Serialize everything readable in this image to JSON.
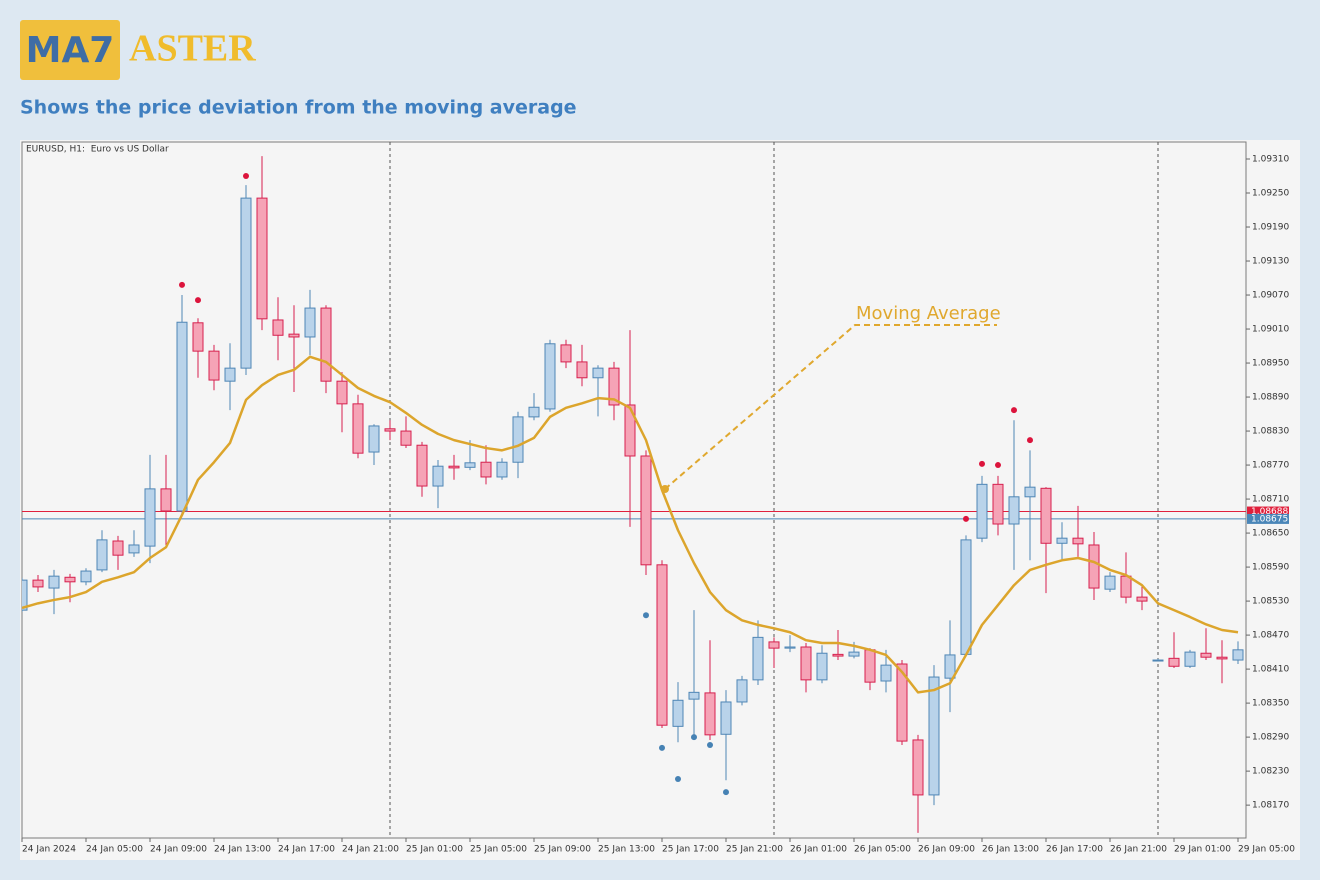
{
  "header": {
    "logo_box": "MA7",
    "logo_text": "ASTER",
    "subtitle": "Shows the price deviation from the moving average"
  },
  "chart_data": {
    "type": "candlestick",
    "title": "EURUSD, H1:  Euro vs US Dollar",
    "annotations": [
      "Moving Average"
    ],
    "categories": [
      "24 Jan 2024",
      null,
      null,
      null,
      "24 Jan 05:00",
      null,
      null,
      null,
      "24 Jan 09:00",
      null,
      null,
      null,
      "24 Jan 13:00",
      null,
      null,
      null,
      "24 Jan 17:00",
      null,
      null,
      null,
      "24 Jan 21:00",
      null,
      null,
      null,
      "25 Jan 01:00",
      null,
      null,
      null,
      "25 Jan 05:00",
      null,
      null,
      null,
      "25 Jan 09:00",
      null,
      null,
      null,
      "25 Jan 13:00",
      null,
      null,
      null,
      "25 Jan 17:00",
      null,
      null,
      null,
      "25 Jan 21:00",
      null,
      null,
      null,
      "26 Jan 01:00",
      null,
      null,
      null,
      "26 Jan 05:00",
      null,
      null,
      null,
      "26 Jan 09:00",
      null,
      null,
      null,
      "26 Jan 13:00",
      null,
      null,
      null,
      "26 Jan 17:00",
      null,
      null,
      null,
      "26 Jan 21:00",
      null,
      null,
      null,
      "29 Jan 01:00",
      null,
      null,
      null,
      "29 Jan 05:00"
    ],
    "open": [
      1.08514,
      1.08567,
      1.08553,
      1.08572,
      1.08564,
      1.08585,
      1.08636,
      1.08615,
      1.08627,
      1.08728,
      1.08689,
      1.09021,
      1.08971,
      1.08918,
      1.08941,
      1.09241,
      1.09026,
      1.09001,
      1.08996,
      1.09047,
      1.08918,
      1.08878,
      1.08793,
      1.08834,
      1.0883,
      1.08805,
      1.08733,
      1.08768,
      1.08766,
      1.08775,
      1.08749,
      1.08775,
      1.08855,
      1.08869,
      1.08982,
      1.08952,
      1.08924,
      1.08941,
      1.08876,
      1.08786,
      1.08594,
      1.08309,
      1.08357,
      1.08368,
      1.08295,
      1.08352,
      1.08391,
      1.08458,
      1.08447,
      1.08449,
      1.08391,
      1.08436,
      1.08433,
      1.08444,
      1.08389,
      1.08419,
      1.08285,
      1.08188,
      1.08394,
      1.08436,
      1.08641,
      1.08736,
      1.08666,
      1.08714,
      1.08729,
      1.08632,
      1.08641,
      1.08629,
      1.08551,
      1.08574,
      1.08537,
      1.08426,
      1.08429,
      1.08415,
      1.08438,
      1.08431,
      1.08426
    ],
    "high": [
      1.08571,
      1.08576,
      1.08585,
      1.08578,
      1.08588,
      1.08655,
      1.08645,
      1.08655,
      1.08788,
      1.08788,
      1.0907,
      1.09029,
      1.08982,
      1.08985,
      1.09264,
      1.09315,
      1.09066,
      1.09052,
      1.09079,
      1.09052,
      1.08934,
      1.08894,
      1.08842,
      1.08849,
      1.08856,
      1.08811,
      1.08779,
      1.08788,
      1.08814,
      1.08805,
      1.08782,
      1.08864,
      1.08897,
      1.08991,
      1.08991,
      1.08982,
      1.08946,
      1.08952,
      1.09008,
      1.08796,
      1.08602,
      1.08387,
      1.08514,
      1.08461,
      1.08373,
      1.08398,
      1.08496,
      1.08466,
      1.0847,
      1.08456,
      1.08452,
      1.08479,
      1.08458,
      1.08447,
      1.08444,
      1.08426,
      1.08294,
      1.08417,
      1.08496,
      1.08646,
      1.08751,
      1.08751,
      1.08849,
      1.08796,
      1.08731,
      1.08669,
      1.08698,
      1.08652,
      1.08581,
      1.08616,
      1.08558,
      1.08428,
      1.08475,
      1.08444,
      1.08482,
      1.08461,
      1.08459
    ],
    "low": [
      1.08511,
      1.08546,
      1.08507,
      1.08528,
      1.08558,
      1.08581,
      1.08585,
      1.08608,
      1.08597,
      1.08629,
      1.08682,
      1.08924,
      1.08902,
      1.08867,
      1.08929,
      1.09008,
      1.08955,
      1.08899,
      1.08964,
      1.08897,
      1.08828,
      1.08782,
      1.0877,
      1.08814,
      1.088,
      1.08714,
      1.08694,
      1.08744,
      1.08761,
      1.08736,
      1.08744,
      1.08747,
      1.08849,
      1.08864,
      1.08941,
      1.08909,
      1.08856,
      1.08849,
      1.08661,
      1.08576,
      1.08306,
      1.08281,
      1.08294,
      1.08285,
      1.08214,
      1.08346,
      1.08382,
      1.08412,
      1.0844,
      1.08369,
      1.08385,
      1.08426,
      1.08429,
      1.08373,
      1.08369,
      1.08276,
      1.08121,
      1.0817,
      1.08334,
      1.08433,
      1.08634,
      1.08646,
      1.08585,
      1.08602,
      1.08544,
      1.08602,
      1.08608,
      1.08532,
      1.08546,
      1.08526,
      1.08514,
      1.08424,
      1.08412,
      1.08412,
      1.08426,
      1.08385,
      1.08419
    ],
    "close": [
      1.08567,
      1.08555,
      1.08574,
      1.08564,
      1.08583,
      1.08638,
      1.08611,
      1.08629,
      1.08728,
      1.08689,
      1.09022,
      1.08971,
      1.0892,
      1.08941,
      1.09241,
      1.09028,
      1.08999,
      1.08996,
      1.09047,
      1.08918,
      1.08878,
      1.08791,
      1.08839,
      1.0883,
      1.08805,
      1.08733,
      1.08768,
      1.08765,
      1.08774,
      1.08749,
      1.08775,
      1.08855,
      1.08872,
      1.08984,
      1.08952,
      1.08924,
      1.08941,
      1.08876,
      1.08786,
      1.08594,
      1.08311,
      1.08355,
      1.08369,
      1.08294,
      1.08352,
      1.08391,
      1.08466,
      1.08447,
      1.08449,
      1.08391,
      1.08438,
      1.08433,
      1.0844,
      1.08387,
      1.08417,
      1.08283,
      1.08188,
      1.08396,
      1.08435,
      1.08638,
      1.08736,
      1.08666,
      1.08714,
      1.08731,
      1.08632,
      1.08641,
      1.08631,
      1.08553,
      1.08574,
      1.08537,
      1.0853,
      1.08426,
      1.08415,
      1.0844,
      1.08431,
      1.08428,
      1.08444
    ],
    "up_color": {
      "fill": "#b9d3ea",
      "stroke": "#4f86b5"
    },
    "down_color": {
      "fill": "#f5a3b6",
      "stroke": "#d6204e"
    },
    "moving_average": {
      "color": "#dca52c",
      "values": [
        1.08518,
        1.08526,
        1.08532,
        1.08537,
        1.08546,
        1.08564,
        1.08572,
        1.08581,
        1.08606,
        1.08625,
        1.08682,
        1.08744,
        1.08775,
        1.08809,
        1.08885,
        1.08911,
        1.08929,
        1.08938,
        1.08961,
        1.08952,
        1.08929,
        1.08906,
        1.08892,
        1.08881,
        1.08862,
        1.08841,
        1.08825,
        1.08814,
        1.08807,
        1.088,
        1.08796,
        1.08804,
        1.08818,
        1.08855,
        1.08871,
        1.08879,
        1.08888,
        1.08886,
        1.08871,
        1.08814,
        1.08726,
        1.08655,
        1.08597,
        1.08546,
        1.08514,
        1.08496,
        1.08488,
        1.08482,
        1.08475,
        1.08461,
        1.08456,
        1.08456,
        1.08451,
        1.08444,
        1.08435,
        1.08405,
        1.08369,
        1.08373,
        1.08385,
        1.08435,
        1.08488,
        1.08523,
        1.08558,
        1.08585,
        1.08594,
        1.08602,
        1.08606,
        1.08599,
        1.08585,
        1.08576,
        1.08558,
        1.08526,
        1.08514,
        1.08502,
        1.08489,
        1.08479,
        1.08475
      ]
    },
    "upper_signals": {
      "color": "#dc143c",
      "values": [
        null,
        null,
        null,
        null,
        null,
        null,
        null,
        null,
        null,
        null,
        1.09088,
        1.09061,
        null,
        null,
        1.0928,
        null,
        null,
        null,
        null,
        null,
        null,
        null,
        null,
        null,
        null,
        null,
        null,
        null,
        null,
        null,
        null,
        null,
        null,
        null,
        null,
        null,
        null,
        null,
        null,
        null,
        null,
        null,
        null,
        null,
        null,
        null,
        null,
        null,
        null,
        null,
        null,
        null,
        null,
        null,
        null,
        null,
        null,
        null,
        null,
        1.08675,
        1.08772,
        1.0877,
        1.08867,
        1.08814,
        null,
        null,
        null,
        null,
        null,
        null,
        null,
        null,
        null,
        null,
        null,
        null,
        null
      ]
    },
    "lower_signals": {
      "color": "#4682b4",
      "values": [
        null,
        null,
        null,
        null,
        null,
        null,
        null,
        null,
        null,
        null,
        null,
        null,
        null,
        null,
        null,
        null,
        null,
        null,
        null,
        null,
        null,
        null,
        null,
        null,
        null,
        null,
        null,
        null,
        null,
        null,
        null,
        null,
        null,
        null,
        null,
        null,
        null,
        null,
        null,
        1.08505,
        1.08271,
        1.08216,
        1.0829,
        1.08276,
        1.08193,
        null,
        null,
        null,
        null,
        null,
        null,
        null,
        null,
        null,
        null,
        null,
        null,
        null,
        null,
        null,
        null,
        null,
        null,
        null,
        null,
        null,
        null,
        null,
        null,
        null,
        null,
        null,
        null,
        null,
        null,
        null,
        null
      ]
    },
    "price_lines": [
      {
        "value": 1.08688,
        "color": "#e0203c"
      },
      {
        "value": 1.08675,
        "color": "#4a86b8"
      }
    ],
    "ylim": [
      1.08112,
      1.0934
    ],
    "yticks": [
      {
        "value": 1.0931,
        "label": "1.09310"
      },
      {
        "value": 1.0925,
        "label": "1.09250"
      },
      {
        "value": 1.0919,
        "label": "1.09190"
      },
      {
        "value": 1.0913,
        "label": "1.09130"
      },
      {
        "value": 1.0907,
        "label": "1.09070"
      },
      {
        "value": 1.0901,
        "label": "1.09010"
      },
      {
        "value": 1.0895,
        "label": "1.08950"
      },
      {
        "value": 1.0889,
        "label": "1.08890"
      },
      {
        "value": 1.0883,
        "label": "1.08830"
      },
      {
        "value": 1.0877,
        "label": "1.08770"
      },
      {
        "value": 1.0871,
        "label": "1.08710"
      },
      {
        "value": 1.0865,
        "label": "1.08650"
      },
      {
        "value": 1.0859,
        "label": "1.08590"
      },
      {
        "value": 1.0853,
        "label": "1.08530"
      },
      {
        "value": 1.0847,
        "label": "1.08470"
      },
      {
        "value": 1.0841,
        "label": "1.08410"
      },
      {
        "value": 1.0835,
        "label": "1.08350"
      },
      {
        "value": 1.0829,
        "label": "1.08290"
      },
      {
        "value": 1.0823,
        "label": "1.08230"
      },
      {
        "value": 1.0817,
        "label": "1.08170"
      }
    ]
  }
}
